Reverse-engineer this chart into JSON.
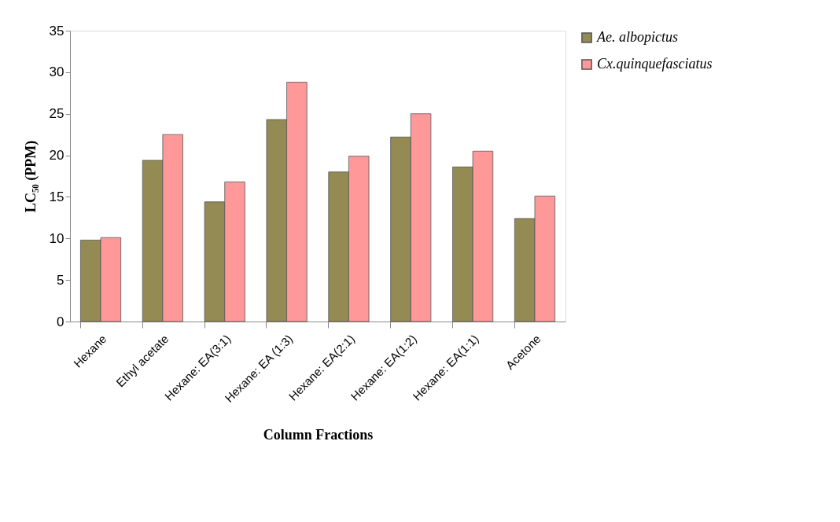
{
  "chart_data": {
    "type": "bar",
    "categories": [
      "Hexane",
      "Ethyl acetate",
      "Hexane: EA(3:1)",
      "Hexane: EA (1:3)",
      "Hexane: EA(2:1)",
      "Hexane: EA(1:2)",
      "Hexane: EA(1:1)",
      "Acetone"
    ],
    "series": [
      {
        "name": "Ae. albopictus",
        "color": "#948a54",
        "values": [
          9.8,
          19.4,
          14.4,
          24.3,
          18.0,
          22.2,
          18.6,
          12.4
        ]
      },
      {
        "name": "Cx.quinquefasciatus",
        "color": "#ff9999",
        "values": [
          10.1,
          22.5,
          16.8,
          28.8,
          19.9,
          25.0,
          20.5,
          15.1
        ]
      }
    ],
    "xlabel": "Column Fractions",
    "ylabel": "LC₅₀ (PPM)",
    "ylim": [
      0,
      35
    ],
    "yticks": [
      0,
      5,
      10,
      15,
      20,
      25,
      30,
      35
    ],
    "grid": false,
    "legend": "right"
  }
}
